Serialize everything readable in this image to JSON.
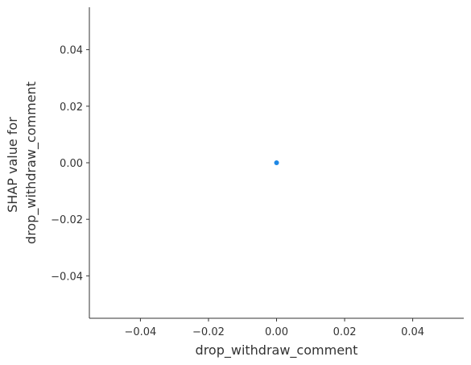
{
  "chart_data": {
    "type": "scatter",
    "xlabel": "drop_withdraw_comment",
    "ylabel_lines": [
      "SHAP value for",
      "drop_withdraw_comment"
    ],
    "xlim": [
      -0.055,
      0.055
    ],
    "ylim": [
      -0.055,
      0.055
    ],
    "x_ticks": [
      -0.04,
      -0.02,
      0.0,
      0.02,
      0.04
    ],
    "x_tick_labels": [
      "−0.04",
      "−0.02",
      "0.00",
      "0.02",
      "0.04"
    ],
    "y_ticks": [
      0.04,
      0.02,
      0.0,
      -0.02,
      -0.04
    ],
    "y_tick_labels": [
      "0.04",
      "0.02",
      "0.00",
      "−0.02",
      "−0.04"
    ],
    "grid": false,
    "points": [
      {
        "x": 0.0,
        "y": 0.0
      }
    ],
    "point_color": "#1e88e5"
  }
}
